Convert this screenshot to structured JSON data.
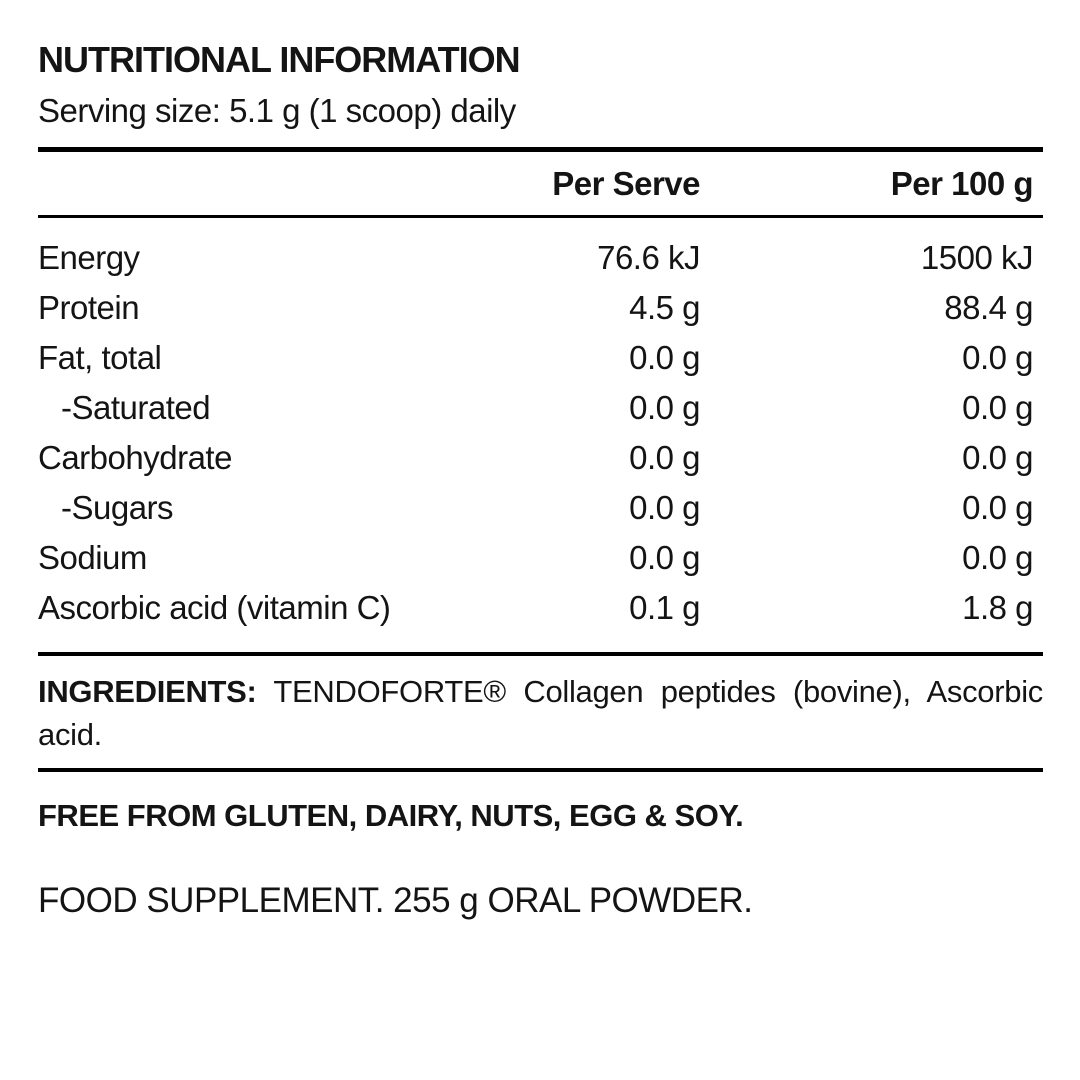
{
  "page": {
    "background_color": "#ffffff",
    "text_color": "#141414",
    "rule_color": "#000000"
  },
  "header": {
    "title": "NUTRITIONAL INFORMATION",
    "serving_size": "Serving size: 5.1 g (1 scoop) daily"
  },
  "table": {
    "columns": [
      "",
      "Per Serve",
      "Per 100 g"
    ],
    "rows": [
      {
        "label": "Energy",
        "per_serve": "76.6 kJ",
        "per_100g": "1500 kJ"
      },
      {
        "label": "Protein",
        "per_serve": "4.5 g",
        "per_100g": "88.4 g"
      },
      {
        "label": "Fat, total",
        "per_serve": "0.0 g",
        "per_100g": "0.0 g"
      },
      {
        "label": "-Saturated",
        "per_serve": "0.0 g",
        "per_100g": "0.0 g"
      },
      {
        "label": "Carbohydrate",
        "per_serve": "0.0 g",
        "per_100g": "0.0 g"
      },
      {
        "label": "-Sugars",
        "per_serve": "0.0 g",
        "per_100g": "0.0 g"
      },
      {
        "label": "Sodium",
        "per_serve": "0.0 g",
        "per_100g": "0.0 g"
      },
      {
        "label": "Ascorbic acid (vitamin C)",
        "per_serve": "0.1 g",
        "per_100g": "1.8 g"
      }
    ]
  },
  "ingredients": {
    "label": "INGREDIENTS:",
    "line1": "TENDOFORTE® Collagen peptides (bovine), Ascorbic",
    "line2": "acid."
  },
  "free_from": "FREE FROM GLUTEN, DAIRY, NUTS, EGG & SOY.",
  "supplement": "FOOD SUPPLEMENT. 255 g ORAL POWDER."
}
